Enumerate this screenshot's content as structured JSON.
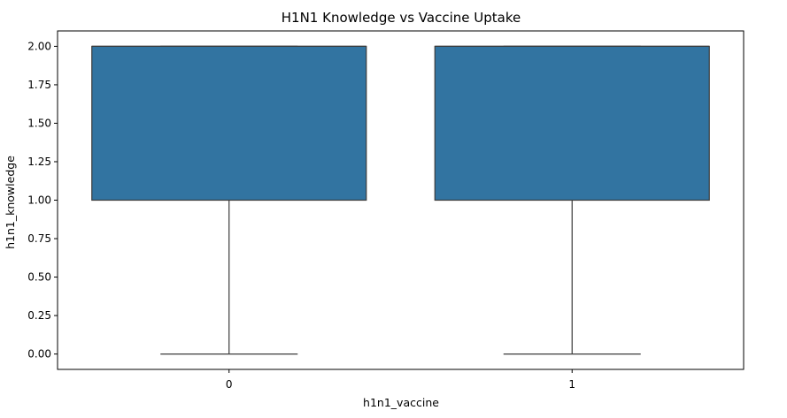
{
  "chart_data": {
    "type": "box",
    "title": "H1N1 Knowledge vs Vaccine Uptake",
    "xlabel": "h1n1_vaccine",
    "ylabel": "h1n1_knowledge",
    "categories": [
      "0",
      "1"
    ],
    "boxes": [
      {
        "category": "0",
        "whisker_low": 0.0,
        "q1": 1.0,
        "median": 2.0,
        "q3": 2.0,
        "whisker_high": 2.0
      },
      {
        "category": "1",
        "whisker_low": 0.0,
        "q1": 1.0,
        "median": 2.0,
        "q3": 2.0,
        "whisker_high": 2.0
      }
    ],
    "ylim": [
      -0.1,
      2.1
    ],
    "yticks": [
      "0.00",
      "0.25",
      "0.50",
      "0.75",
      "1.00",
      "1.25",
      "1.50",
      "1.75",
      "2.00"
    ],
    "grid": false,
    "colors": {
      "box_fill": "#3274a1",
      "line": "#3b3b3b"
    }
  }
}
